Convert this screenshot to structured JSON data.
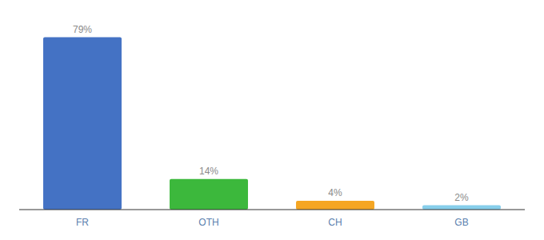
{
  "chart_data": {
    "type": "bar",
    "categories": [
      "FR",
      "OTH",
      "CH",
      "GB"
    ],
    "values": [
      79,
      14,
      4,
      2
    ],
    "value_labels": [
      "79%",
      "14%",
      "4%",
      "2%"
    ],
    "colors": [
      "#4472c4",
      "#3cb83c",
      "#f5a623",
      "#87ceeb"
    ],
    "ylim": [
      0,
      88
    ],
    "data_labels": true,
    "tick_labels": "x"
  }
}
